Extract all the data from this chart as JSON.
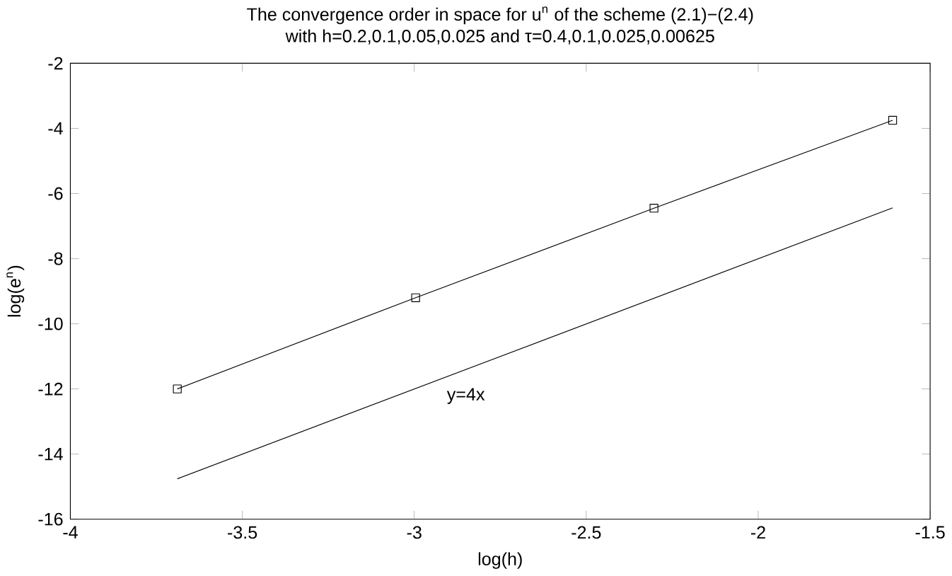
{
  "chart_data": {
    "type": "line",
    "title": "The convergence order in space for u$^{n}$ of the scheme (2.1)−(2.4)",
    "subtitle": "with h=0.2,0.1,0.05,0.025 and τ=0.4,0.1,0.025,0.00625",
    "xlabel": "log(h)",
    "ylabel": "log(e$^{n}$)",
    "series": [
      {
        "color": "#000000",
        "marker": "square",
        "x": [
          -3.689,
          -2.996,
          -2.303,
          -1.609
        ],
        "values": [
          -12.0,
          -9.2,
          -6.45,
          -3.75
        ]
      },
      {
        "color": "#000000",
        "marker": "none",
        "x": [
          -3.689,
          -1.609
        ],
        "values": [
          -14.76,
          -6.44
        ]
      }
    ],
    "annotations": [
      "y=4x"
    ],
    "xlim": [
      -4,
      -1.5
    ],
    "xticks": [
      -4,
      -3.5,
      -3,
      -2.5,
      -2,
      -1.5
    ],
    "ylim": [
      -16,
      -2
    ],
    "yticks": [
      -16,
      -14,
      -12,
      -10,
      -8,
      -6,
      -4,
      -2
    ]
  }
}
